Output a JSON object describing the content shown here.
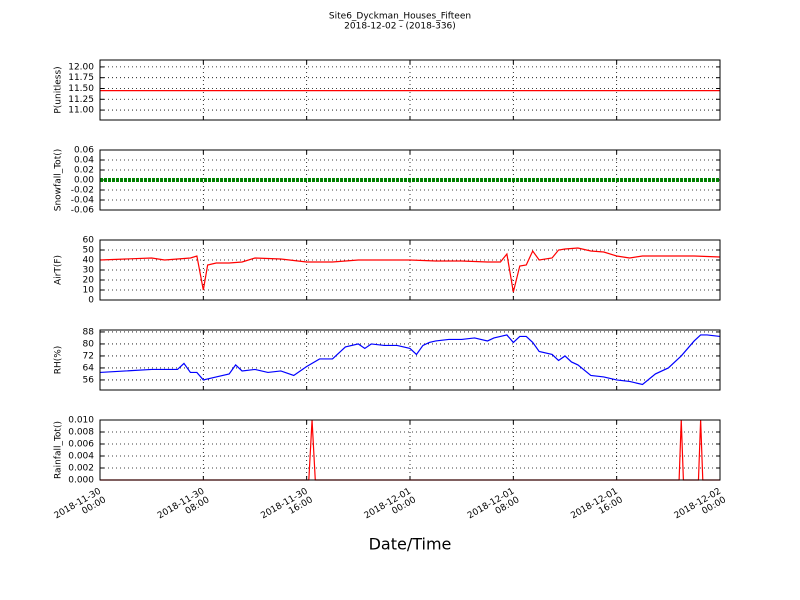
{
  "title": "Site6_Dyckman_Houses_Fifteen",
  "subtitle": "2018-12-02 - (2018-336)",
  "xlabel": "Date/Time",
  "xlim": [
    "2018-11-30 00:00",
    "2018-12-02 00:00"
  ],
  "xticks": [
    "2018-11-30 00:00",
    "2018-11-30 08:00",
    "2018-11-30 16:00",
    "2018-12-01 00:00",
    "2018-12-01 08:00",
    "2018-12-01 16:00",
    "2018-12-02 00:00"
  ],
  "grid": true,
  "chart_data": [
    {
      "type": "line",
      "ylabel": "P(unitless)",
      "ylim": [
        10.77,
        12.16
      ],
      "yticks": [
        {
          "value": 11,
          "label": "11.00"
        },
        {
          "value": 11.25,
          "label": "11.25"
        },
        {
          "value": 11.5,
          "label": "11.50"
        },
        {
          "value": 11.75,
          "label": "11.75"
        },
        {
          "value": 12,
          "label": "12.00"
        }
      ],
      "x": [
        "2018-11-30 00:00",
        "2018-12-02 00:00"
      ],
      "series": [
        {
          "color": "#ff0000",
          "values": [
            11.45,
            11.45
          ]
        }
      ]
    },
    {
      "type": "line",
      "ylabel": "Snowfall_Tot()",
      "ylim": [
        -0.06,
        0.06
      ],
      "yticks": [
        -0.06,
        -0.04,
        -0.02,
        {
          "value": 0,
          "label": "0.00"
        },
        0.02,
        0.04,
        0.06
      ],
      "x": [
        "2018-11-30 00:00",
        "2018-12-02 00:00"
      ],
      "series": [
        {
          "color": "#008000",
          "values": [
            0,
            0
          ]
        }
      ]
    },
    {
      "type": "line",
      "ylabel": "AirT(F)",
      "ylim": [
        0,
        60
      ],
      "yticks": [
        0,
        10,
        20,
        30,
        40,
        50,
        60
      ],
      "x": [
        "2018-11-30 00:00",
        "2018-11-30 02:00",
        "2018-11-30 04:00",
        "2018-11-30 05:00",
        "2018-11-30 06:00",
        "2018-11-30 07:00",
        "2018-11-30 07:30",
        "2018-11-30 08:00",
        "2018-11-30 08:20",
        "2018-11-30 09:00",
        "2018-11-30 10:00",
        "2018-11-30 11:00",
        "2018-11-30 12:00",
        "2018-11-30 14:00",
        "2018-11-30 16:00",
        "2018-11-30 18:00",
        "2018-11-30 20:00",
        "2018-11-30 22:00",
        "2018-12-01 00:00",
        "2018-12-01 02:00",
        "2018-12-01 04:00",
        "2018-12-01 06:00",
        "2018-12-01 07:00",
        "2018-12-01 07:30",
        "2018-12-01 08:00",
        "2018-12-01 08:30",
        "2018-12-01 09:00",
        "2018-12-01 09:30",
        "2018-12-01 10:00",
        "2018-12-01 11:00",
        "2018-12-01 11:30",
        "2018-12-01 12:00",
        "2018-12-01 13:00",
        "2018-12-01 14:00",
        "2018-12-01 15:00",
        "2018-12-01 16:00",
        "2018-12-01 17:00",
        "2018-12-01 18:00",
        "2018-12-01 20:00",
        "2018-12-01 22:00",
        "2018-12-02 00:00"
      ],
      "series": [
        {
          "color": "#ff0000",
          "values": [
            40,
            41,
            42,
            40,
            41,
            42,
            44,
            10,
            35,
            37,
            37,
            38,
            42,
            41,
            38,
            38,
            40,
            40,
            40,
            39,
            39,
            38,
            38,
            46,
            8,
            34,
            35,
            49,
            40,
            42,
            50,
            51,
            52,
            49,
            48,
            44,
            42,
            44,
            44,
            44,
            43
          ]
        }
      ]
    },
    {
      "type": "line",
      "ylabel": "RH(%)",
      "ylim": [
        49.3,
        89.3
      ],
      "yticks": [
        56,
        64,
        72,
        80,
        88
      ],
      "x": [
        "2018-11-30 00:00",
        "2018-11-30 02:00",
        "2018-11-30 04:00",
        "2018-11-30 06:00",
        "2018-11-30 06:30",
        "2018-11-30 07:00",
        "2018-11-30 07:30",
        "2018-11-30 08:00",
        "2018-11-30 09:00",
        "2018-11-30 10:00",
        "2018-11-30 10:30",
        "2018-11-30 11:00",
        "2018-11-30 12:00",
        "2018-11-30 13:00",
        "2018-11-30 14:00",
        "2018-11-30 15:00",
        "2018-11-30 16:00",
        "2018-11-30 17:00",
        "2018-11-30 18:00",
        "2018-11-30 19:00",
        "2018-11-30 20:00",
        "2018-11-30 20:30",
        "2018-11-30 21:00",
        "2018-11-30 22:00",
        "2018-11-30 23:00",
        "2018-12-01 00:00",
        "2018-12-01 00:30",
        "2018-12-01 01:00",
        "2018-12-01 01:30",
        "2018-12-01 02:00",
        "2018-12-01 03:00",
        "2018-12-01 04:00",
        "2018-12-01 05:00",
        "2018-12-01 06:00",
        "2018-12-01 06:30",
        "2018-12-01 07:00",
        "2018-12-01 07:30",
        "2018-12-01 08:00",
        "2018-12-01 08:30",
        "2018-12-01 09:00",
        "2018-12-01 09:30",
        "2018-12-01 10:00",
        "2018-12-01 11:00",
        "2018-12-01 11:30",
        "2018-12-01 12:00",
        "2018-12-01 12:30",
        "2018-12-01 13:00",
        "2018-12-01 14:00",
        "2018-12-01 15:00",
        "2018-12-01 16:00",
        "2018-12-01 17:00",
        "2018-12-01 18:00",
        "2018-12-01 19:00",
        "2018-12-01 20:00",
        "2018-12-01 21:00",
        "2018-12-01 21:30",
        "2018-12-01 22:00",
        "2018-12-01 22:30",
        "2018-12-01 23:00",
        "2018-12-02 00:00"
      ],
      "series": [
        {
          "color": "#0000ff",
          "values": [
            61,
            62,
            63,
            63,
            67,
            61,
            61,
            56,
            58,
            60,
            66,
            62,
            63,
            61,
            62,
            59,
            65,
            70,
            70,
            78,
            80,
            77,
            80,
            79,
            79,
            77,
            73,
            79,
            81,
            82,
            83,
            83,
            84,
            82,
            84,
            85,
            86,
            81,
            85,
            85,
            81,
            75,
            73,
            69,
            72,
            68,
            66,
            59,
            58,
            56,
            55,
            53,
            60,
            64,
            72,
            77,
            82,
            86,
            86,
            85
          ]
        }
      ]
    },
    {
      "type": "line",
      "ylabel": "Rainfall_Tot()",
      "ylim": [
        0,
        0.01
      ],
      "yticks": [
        {
          "value": 0,
          "label": "0.000"
        },
        {
          "value": 0.002,
          "label": "0.002"
        },
        {
          "value": 0.004,
          "label": "0.004"
        },
        {
          "value": 0.006,
          "label": "0.006"
        },
        {
          "value": 0.008,
          "label": "0.008"
        },
        {
          "value": 0.01,
          "label": "0.010"
        }
      ],
      "x": [
        "2018-11-30 00:00",
        "2018-11-30 16:10",
        "2018-11-30 16:25",
        "2018-11-30 16:40",
        "2018-12-01 20:50",
        "2018-12-01 21:00",
        "2018-12-01 21:10",
        "2018-12-01 22:20",
        "2018-12-01 22:30",
        "2018-12-01 22:40",
        "2018-12-02 00:00"
      ],
      "series": [
        {
          "color": "#ff0000",
          "values": [
            0,
            0,
            0.01,
            0,
            0,
            0.01,
            0,
            0,
            0.01,
            0,
            0
          ]
        }
      ]
    }
  ]
}
